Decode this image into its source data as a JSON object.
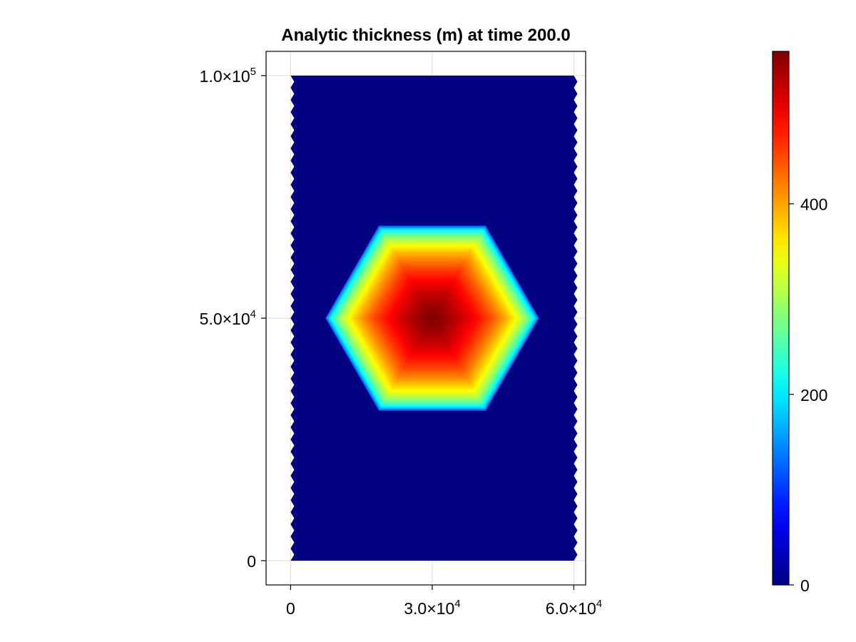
{
  "chart_data": {
    "type": "heatmap",
    "title": "Analytic thickness (m) at time 200.0",
    "xlabel": "",
    "ylabel": "",
    "xlim": [
      -5200,
      62500
    ],
    "ylim": [
      -5000,
      105000
    ],
    "domain": {
      "x": [
        0,
        60000
      ],
      "y": [
        0,
        100000
      ]
    },
    "dome": {
      "center": [
        30000,
        50000
      ],
      "radius": 22500,
      "peak": 560
    },
    "background_value": 0,
    "grid": true,
    "colormap": "jet",
    "colorbar": {
      "range": [
        0,
        560
      ],
      "ticks": [
        0,
        200,
        400
      ]
    },
    "x_ticks": [
      {
        "value": 0,
        "mantissa": "0",
        "exponent": ""
      },
      {
        "value": 30000,
        "mantissa": "3.0×10",
        "exponent": "4"
      },
      {
        "value": 60000,
        "mantissa": "6.0×10",
        "exponent": "4"
      }
    ],
    "y_ticks": [
      {
        "value": 0,
        "mantissa": "0",
        "exponent": ""
      },
      {
        "value": 50000,
        "mantissa": "5.0×10",
        "exponent": "4"
      },
      {
        "value": 100000,
        "mantissa": "1.0×10",
        "exponent": "5"
      }
    ]
  }
}
